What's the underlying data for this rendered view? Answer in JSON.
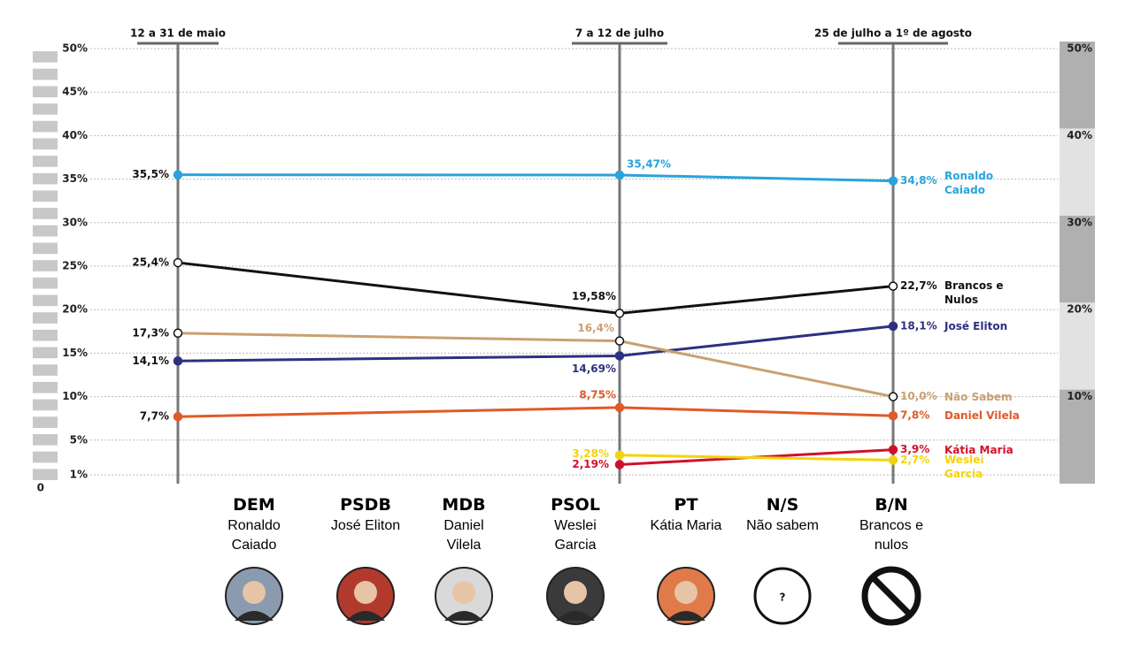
{
  "chart_data": {
    "type": "line",
    "categories": [
      "12 a 31 de maio",
      "7 a 12 de julho",
      "25 de julho a 1º de agosto"
    ],
    "series": [
      {
        "name": "Ronaldo Caiado",
        "color": "#29a3dc",
        "values": [
          35.5,
          35.47,
          34.8
        ],
        "value_labels": [
          "35,5%",
          "35,47%",
          "34,8%"
        ]
      },
      {
        "name": "Brancos e Nulos",
        "color": "#111111",
        "marker": "open",
        "values": [
          25.4,
          19.58,
          22.7
        ],
        "value_labels": [
          "25,4%",
          "19,58%",
          "22,7%"
        ]
      },
      {
        "name": "José Eliton",
        "color": "#2e3080",
        "values": [
          14.1,
          14.69,
          18.1
        ],
        "value_labels": [
          "14,1%",
          "14,69%",
          "18,1%"
        ]
      },
      {
        "name": "Não Sabem",
        "color": "#c9a070",
        "marker": "open",
        "values": [
          17.3,
          16.4,
          10.0
        ],
        "value_labels": [
          "17,3%",
          "16,4%",
          "10,0%"
        ]
      },
      {
        "name": "Daniel Vilela",
        "color": "#e05a28",
        "values": [
          7.7,
          8.75,
          7.8
        ],
        "value_labels": [
          "7,7%",
          "8,75%",
          "7,8%"
        ]
      },
      {
        "name": "Kátia Maria",
        "color": "#d0112b",
        "values": [
          null,
          2.19,
          3.9
        ],
        "value_labels": [
          null,
          "2,19%",
          "3,9%"
        ]
      },
      {
        "name": "Weslei Garcia",
        "color": "#f2d40c",
        "values": [
          null,
          3.28,
          2.7
        ],
        "value_labels": [
          null,
          "3,28%",
          "2,7%"
        ]
      }
    ],
    "ylim": [
      0,
      50
    ],
    "yticks": [
      {
        "value": 0,
        "label": "0"
      },
      {
        "value": 1,
        "label": "1%"
      },
      {
        "value": 5,
        "label": "5%"
      },
      {
        "value": 10,
        "label": "10%"
      },
      {
        "value": 15,
        "label": "15%"
      },
      {
        "value": 20,
        "label": "20%"
      },
      {
        "value": 25,
        "label": "25%"
      },
      {
        "value": 30,
        "label": "30%"
      },
      {
        "value": 35,
        "label": "35%"
      },
      {
        "value": 40,
        "label": "40%"
      },
      {
        "value": 45,
        "label": "45%"
      },
      {
        "value": 50,
        "label": "50%"
      }
    ],
    "y2ticks": [
      {
        "value": 10,
        "label": "10%"
      },
      {
        "value": 20,
        "label": "20%"
      },
      {
        "value": 30,
        "label": "30%"
      },
      {
        "value": 40,
        "label": "40%"
      },
      {
        "value": 50,
        "label": "50%"
      }
    ],
    "grid": true,
    "parties": [
      {
        "abbr": "DEM",
        "name": "Ronaldo Caiado"
      },
      {
        "abbr": "PSDB",
        "name": "José Eliton"
      },
      {
        "abbr": "MDB",
        "name": "Daniel Vilela"
      },
      {
        "abbr": "PSOL",
        "name": "Weslei Garcia"
      },
      {
        "abbr": "PT",
        "name": "Kátia Maria"
      },
      {
        "abbr": "N/S",
        "name": "Não sabem",
        "icon": "?"
      },
      {
        "abbr": "B/N",
        "name": "Brancos e nulos"
      }
    ]
  }
}
